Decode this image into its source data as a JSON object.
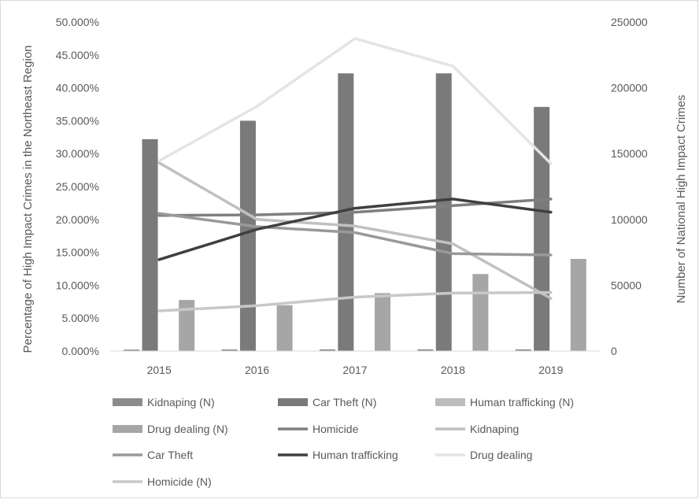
{
  "chart_data": {
    "type": "bar",
    "categories": [
      "2015",
      "2016",
      "2017",
      "2018",
      "2019"
    ],
    "ylabel": "Percentage of High Impact Crimes in the Northeast Region",
    "y2label": "Number of National High Impact Crimes",
    "ylim": [
      0,
      50
    ],
    "y2lim": [
      0,
      250000
    ],
    "yticks": [
      "0.000%",
      "5.000%",
      "10.000%",
      "15.000%",
      "20.000%",
      "25.000%",
      "30.000%",
      "35.000%",
      "40.000%",
      "45.000%",
      "50.000%"
    ],
    "y2ticks": [
      "0",
      "50000",
      "100000",
      "150000",
      "200000",
      "250000"
    ],
    "grid": false,
    "legend_position": "bottom",
    "bar_series": [
      {
        "name": "Kidnaping (N)",
        "axis": "right",
        "color": "#8c8c8c",
        "values": [
          1100,
          1200,
          1250,
          1300,
          1250
        ]
      },
      {
        "name": "Car Theft (N)",
        "axis": "right",
        "color": "#7a7a7a",
        "values": [
          161000,
          175000,
          211000,
          211000,
          185500
        ]
      },
      {
        "name": "Human trafficking (N)",
        "axis": "right",
        "color": "#bcbcbc",
        "values": [
          150,
          150,
          150,
          150,
          150
        ]
      },
      {
        "name": "Drug dealing (N)",
        "axis": "right",
        "color": "#a6a6a6",
        "values": [
          38800,
          34800,
          44000,
          58500,
          70000
        ]
      }
    ],
    "line_series": [
      {
        "name": "Homicide",
        "axis": "left",
        "color": "#7f7f7f",
        "values": [
          20.6,
          20.7,
          21.1,
          22.1,
          23.1
        ]
      },
      {
        "name": "Kidnaping",
        "axis": "left",
        "color": "#c0c0c0",
        "values": [
          28.6,
          20.0,
          19.0,
          16.3,
          8.0
        ]
      },
      {
        "name": "Car Theft",
        "axis": "left",
        "color": "#999999",
        "values": [
          20.9,
          18.9,
          18.0,
          14.8,
          14.6
        ]
      },
      {
        "name": "Human trafficking",
        "axis": "left",
        "color": "#404040",
        "values": [
          13.9,
          18.5,
          21.7,
          23.1,
          21.1
        ]
      },
      {
        "name": "Drug dealing",
        "axis": "left",
        "color": "#e4e4e4",
        "values": [
          28.9,
          37.2,
          47.5,
          43.3,
          28.5
        ]
      },
      {
        "name": "Homicide (N)",
        "axis": "right",
        "color": "#c8c8c8",
        "values": [
          30500,
          34500,
          41000,
          44000,
          44500
        ]
      }
    ],
    "legend": [
      {
        "label": "Kidnaping (N)",
        "kind": "bar",
        "color": "#8c8c8c"
      },
      {
        "label": "Car Theft (N)",
        "kind": "bar",
        "color": "#7a7a7a"
      },
      {
        "label": "Human trafficking (N)",
        "kind": "bar",
        "color": "#bcbcbc"
      },
      {
        "label": "Drug dealing (N)",
        "kind": "bar",
        "color": "#a6a6a6"
      },
      {
        "label": "Homicide",
        "kind": "line",
        "color": "#7f7f7f"
      },
      {
        "label": "Kidnaping",
        "kind": "line",
        "color": "#c0c0c0"
      },
      {
        "label": "Car Theft",
        "kind": "line",
        "color": "#999999"
      },
      {
        "label": "Human trafficking",
        "kind": "line",
        "color": "#404040"
      },
      {
        "label": "Drug dealing",
        "kind": "line",
        "color": "#e4e4e4"
      },
      {
        "label": "Homicide (N)",
        "kind": "line",
        "color": "#c8c8c8"
      }
    ]
  }
}
